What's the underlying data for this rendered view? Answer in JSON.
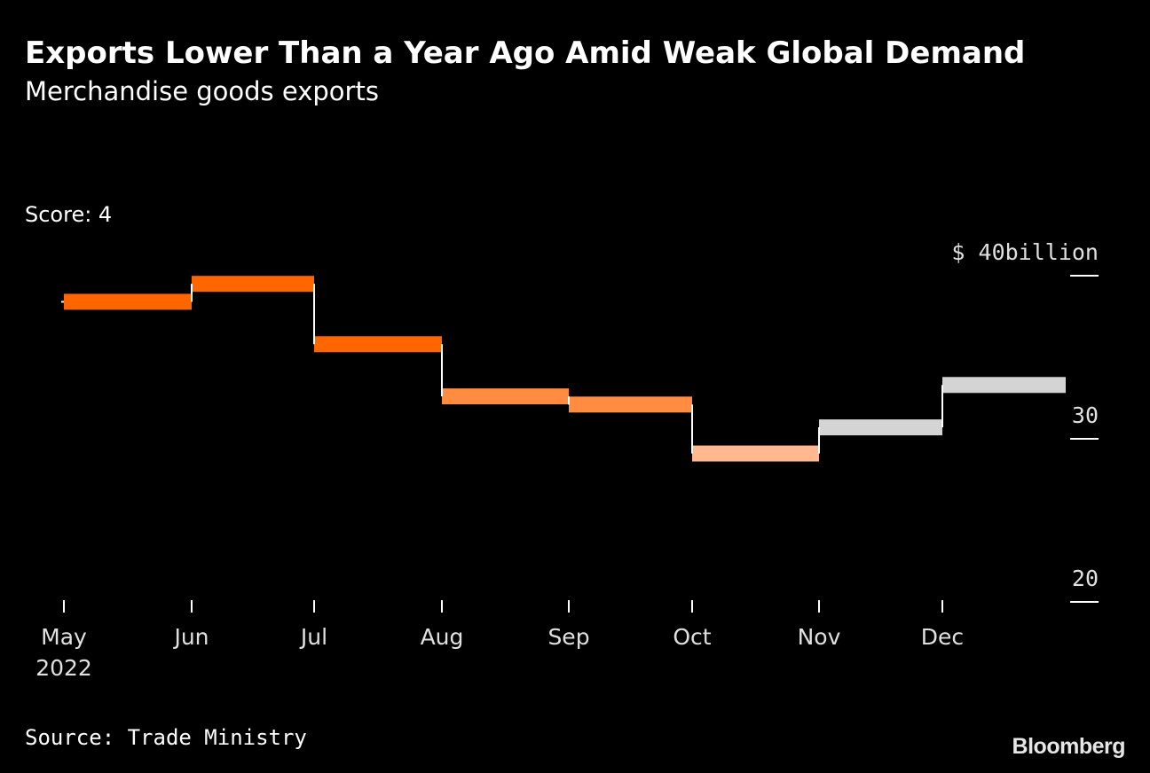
{
  "header": {
    "title": "Exports Lower Than a Year Ago Amid Weak Global Demand",
    "subtitle": "Merchandise goods exports",
    "score_label": "Score: 4"
  },
  "footer": {
    "source": "Source: Trade Ministry",
    "brand": "Bloomberg"
  },
  "colors": {
    "background": "#000000",
    "step_line": "#ffffff",
    "axis_ticks": "#ffffff",
    "bar_dark_orange": "#ff6600",
    "bar_mid_orange": "#ff8c40",
    "bar_light_orange": "#ffb890",
    "bar_gray": "#d4d4d4"
  },
  "chart_data": {
    "type": "line",
    "subtype": "step",
    "title": "Exports Lower Than a Year Ago Amid Weak Global Demand",
    "subtitle": "Merchandise goods exports",
    "x": [
      "May 2022",
      "Jun 2022",
      "Jul 2022",
      "Aug 2022",
      "Sep 2022",
      "Oct 2022",
      "Nov 2022",
      "Dec 2022"
    ],
    "x_tick_labels": [
      "May",
      "Jun",
      "Jul",
      "Aug",
      "Sep",
      "Oct",
      "Nov",
      "Dec"
    ],
    "x_year_label": "2022",
    "series": [
      {
        "values": [
          38.4,
          39.5,
          35.8,
          32.6,
          32.1,
          29.1,
          30.7,
          33.3
        ],
        "segment_colors": [
          "#ff6600",
          "#ff6600",
          "#ff6600",
          "#ff8c40",
          "#ff8c40",
          "#ffb890",
          "#d4d4d4",
          "#d4d4d4"
        ]
      }
    ],
    "y_ticks": [
      {
        "value": 40,
        "label": "40"
      },
      {
        "value": 30,
        "label": "30"
      },
      {
        "value": 20,
        "label": "20"
      }
    ],
    "y_unit_prefix": "$",
    "y_unit_suffix": "billion",
    "ylim": [
      20,
      40
    ],
    "grid": false,
    "legend": "none",
    "y_axis_position": "right"
  }
}
